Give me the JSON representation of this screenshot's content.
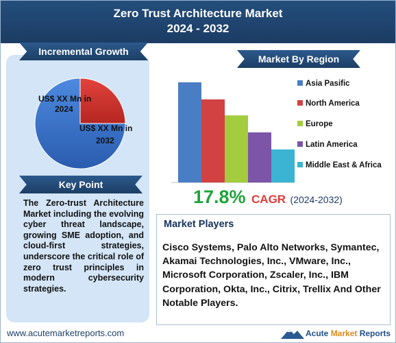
{
  "header": {
    "title_line1": "Zero Trust Architecture Market",
    "title_line2": "2024 - 2032"
  },
  "incremental": {
    "ribbon": "Incremental Growth",
    "label_2024": "US$ XX Mn in 2024",
    "label_2032": "US$ XX Mn in 2032"
  },
  "key_point": {
    "ribbon": "Key Point",
    "text": "The Zero-trust Architecture Market including the evolving cyber threat landscape, growing SME adoption, and cloud-first strategies, underscore the critical role of zero trust principles in modern cybersecurity strategies."
  },
  "region": {
    "ribbon": "Market By Region"
  },
  "cagr": {
    "value": "17.8%",
    "label": "CAGR",
    "period": "(2024-2032)"
  },
  "players": {
    "title": "Market Players",
    "text": "Cisco Systems, Palo Alto Networks, Symantec, Akamai Technologies, Inc., VMware, Inc., Microsoft Corporation, Zscaler, Inc., IBM Corporation, Okta, Inc., Citrix, Trellix And Other Notable Players."
  },
  "footer": {
    "url": "www.acutemarketreports.com",
    "logo_text_1": "Acute",
    "logo_text_2": "Market",
    "logo_text_3": "Reports"
  },
  "colors": {
    "header": "#1f4470",
    "panel": "#d3e5f6",
    "cagr_green": "#1ea43a",
    "cagr_red": "#e03a3a"
  },
  "chart_data": [
    {
      "type": "pie",
      "labels": [
        "US$ XX Mn in 2024",
        "US$ XX Mn in 2032"
      ],
      "values": [
        25,
        75
      ],
      "colors": [
        "#cf2e2a",
        "#3a76cc"
      ]
    },
    {
      "type": "bar",
      "categories": [
        "Asia Pasific",
        "North America",
        "Europe",
        "Latin America",
        "Middle East & Africa"
      ],
      "values": [
        100,
        83,
        67,
        50,
        33
      ],
      "colors": [
        "#4a7ec4",
        "#d24242",
        "#a3cc3e",
        "#7c55a8",
        "#3ab4d2"
      ],
      "legend": "right",
      "grid": false
    }
  ]
}
